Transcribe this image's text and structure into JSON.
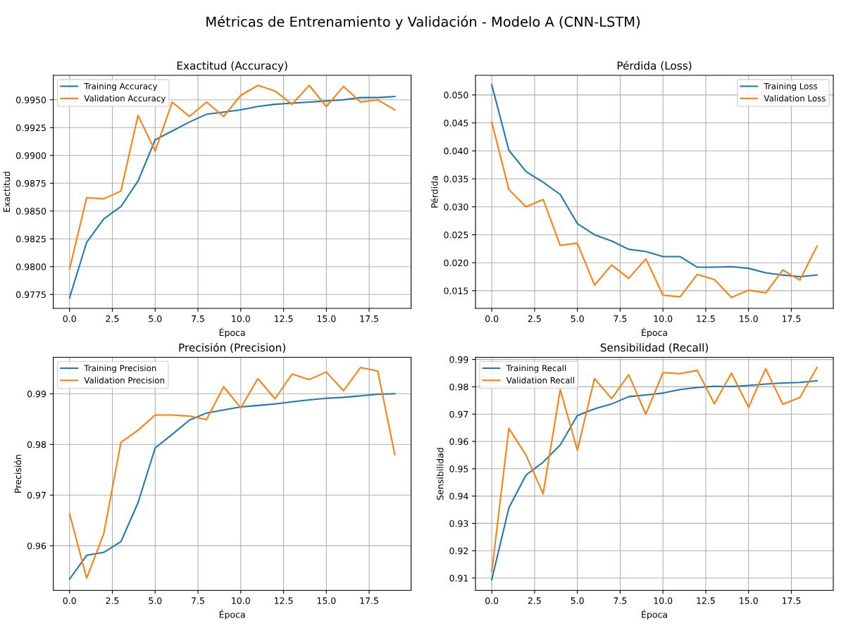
{
  "chart_data": [
    {
      "type": "line",
      "title": "Exactitud (Accuracy)",
      "xlabel": "Época",
      "ylabel": "Exactitud",
      "annotations": [
        "Métricas de Entrenamiento y Validación - Modelo A (CNN-LSTM)"
      ],
      "x": [
        0,
        1,
        2,
        3,
        4,
        5,
        6,
        7,
        8,
        9,
        10,
        11,
        12,
        13,
        14,
        15,
        16,
        17,
        18,
        19
      ],
      "series": [
        {
          "name": "Training Accuracy",
          "color": "#1f77b4",
          "values": [
            0.9772,
            0.9822,
            0.9843,
            0.9854,
            0.9877,
            0.9914,
            0.9922,
            0.993,
            0.9937,
            0.9939,
            0.9941,
            0.9944,
            0.9946,
            0.9947,
            0.9948,
            0.9949,
            0.995,
            0.9952,
            0.9952,
            0.9953
          ]
        },
        {
          "name": "Validation Accuracy",
          "color": "#ff7f0e",
          "values": [
            0.9798,
            0.9862,
            0.9861,
            0.9868,
            0.9936,
            0.9904,
            0.9948,
            0.9935,
            0.9948,
            0.9935,
            0.9954,
            0.9963,
            0.9958,
            0.9946,
            0.9963,
            0.9944,
            0.9962,
            0.9948,
            0.995,
            0.9941
          ]
        }
      ],
      "xlim": [
        -0.95,
        19.95
      ],
      "xticks": [
        {
          "value": 0,
          "label": "0.0"
        },
        {
          "value": 2.5,
          "label": "2.5"
        },
        {
          "value": 5,
          "label": "5.0"
        },
        {
          "value": 7.5,
          "label": "7.5"
        },
        {
          "value": 10,
          "label": "10.0"
        },
        {
          "value": 12.5,
          "label": "12.5"
        },
        {
          "value": 15,
          "label": "15.0"
        },
        {
          "value": 17.5,
          "label": "17.5"
        }
      ],
      "ylim": [
        0.97625,
        0.9972
      ],
      "yticks": [
        {
          "value": 0.9775,
          "label": "0.9775"
        },
        {
          "value": 0.98,
          "label": "0.9800"
        },
        {
          "value": 0.9825,
          "label": "0.9825"
        },
        {
          "value": 0.985,
          "label": "0.9850"
        },
        {
          "value": 0.9875,
          "label": "0.9875"
        },
        {
          "value": 0.99,
          "label": "0.9900"
        },
        {
          "value": 0.9925,
          "label": "0.9925"
        },
        {
          "value": 0.995,
          "label": "0.9950"
        }
      ],
      "grid": true,
      "legend": "top left",
      "line_style": "solid",
      "marker": "none"
    },
    {
      "type": "line",
      "title": "Pérdida (Loss)",
      "xlabel": "Época",
      "ylabel": "Pérdida",
      "x": [
        0,
        1,
        2,
        3,
        4,
        5,
        6,
        7,
        8,
        9,
        10,
        11,
        12,
        13,
        14,
        15,
        16,
        17,
        18,
        19
      ],
      "series": [
        {
          "name": "Training Loss",
          "color": "#1f77b4",
          "values": [
            0.0518,
            0.0401,
            0.0363,
            0.0344,
            0.0322,
            0.027,
            0.025,
            0.0239,
            0.0224,
            0.022,
            0.0211,
            0.0211,
            0.0192,
            0.0192,
            0.0193,
            0.019,
            0.0182,
            0.0178,
            0.0175,
            0.0178
          ]
        },
        {
          "name": "Validation Loss",
          "color": "#ff7f0e",
          "values": [
            0.0451,
            0.0331,
            0.03,
            0.0313,
            0.0231,
            0.0235,
            0.016,
            0.0196,
            0.0172,
            0.0207,
            0.0142,
            0.0139,
            0.0179,
            0.017,
            0.0138,
            0.0151,
            0.0146,
            0.0187,
            0.0169,
            0.023
          ]
        }
      ],
      "xlim": [
        -0.95,
        19.95
      ],
      "xticks": [
        {
          "value": 0,
          "label": "0.0"
        },
        {
          "value": 2.5,
          "label": "2.5"
        },
        {
          "value": 5,
          "label": "5.0"
        },
        {
          "value": 7.5,
          "label": "7.5"
        },
        {
          "value": 10,
          "label": "10.0"
        },
        {
          "value": 12.5,
          "label": "12.5"
        },
        {
          "value": 15,
          "label": "15.0"
        },
        {
          "value": 17.5,
          "label": "17.5"
        }
      ],
      "ylim": [
        0.01184,
        0.0535
      ],
      "yticks": [
        {
          "value": 0.015,
          "label": "0.015"
        },
        {
          "value": 0.02,
          "label": "0.020"
        },
        {
          "value": 0.025,
          "label": "0.025"
        },
        {
          "value": 0.03,
          "label": "0.030"
        },
        {
          "value": 0.035,
          "label": "0.035"
        },
        {
          "value": 0.04,
          "label": "0.040"
        },
        {
          "value": 0.045,
          "label": "0.045"
        },
        {
          "value": 0.05,
          "label": "0.050"
        }
      ],
      "grid": true,
      "legend": "top right",
      "line_style": "solid",
      "marker": "none"
    },
    {
      "type": "line",
      "title": "Precisión (Precision)",
      "xlabel": "Época",
      "ylabel": "Precisión",
      "x": [
        0,
        1,
        2,
        3,
        4,
        5,
        6,
        7,
        8,
        9,
        10,
        11,
        12,
        13,
        14,
        15,
        16,
        17,
        18,
        19
      ],
      "series": [
        {
          "name": "Training Precision",
          "color": "#1f77b4",
          "values": [
            0.9534,
            0.9581,
            0.9587,
            0.9608,
            0.9685,
            0.9793,
            0.982,
            0.9848,
            0.9862,
            0.9868,
            0.9874,
            0.9877,
            0.988,
            0.9884,
            0.9888,
            0.9891,
            0.9893,
            0.9896,
            0.9899,
            0.99
          ]
        },
        {
          "name": "Validation Precision",
          "color": "#ff7f0e",
          "values": [
            0.9663,
            0.9536,
            0.9624,
            0.9804,
            0.9828,
            0.9858,
            0.9858,
            0.9856,
            0.9849,
            0.9914,
            0.9872,
            0.993,
            0.989,
            0.9939,
            0.9928,
            0.9943,
            0.9906,
            0.9952,
            0.9945,
            0.978
          ]
        }
      ],
      "xlim": [
        -0.95,
        19.95
      ],
      "xticks": [
        {
          "value": 0,
          "label": "0.0"
        },
        {
          "value": 2.5,
          "label": "2.5"
        },
        {
          "value": 5,
          "label": "5.0"
        },
        {
          "value": 7.5,
          "label": "7.5"
        },
        {
          "value": 10,
          "label": "10.0"
        },
        {
          "value": 12.5,
          "label": "12.5"
        },
        {
          "value": 15,
          "label": "15.0"
        },
        {
          "value": 17.5,
          "label": "17.5"
        }
      ],
      "ylim": [
        0.9512,
        0.9972
      ],
      "yticks": [
        0.96,
        0.97,
        0.98,
        0.99
      ],
      "grid": true,
      "legend": "top left",
      "line_style": "solid",
      "marker": "none"
    },
    {
      "type": "line",
      "title": "Sensibilidad (Recall)",
      "xlabel": "Época",
      "ylabel": "Sensibilidad",
      "x": [
        0,
        1,
        2,
        3,
        4,
        5,
        6,
        7,
        8,
        9,
        10,
        11,
        12,
        13,
        14,
        15,
        16,
        17,
        18,
        19
      ],
      "series": [
        {
          "name": "Training Recall",
          "color": "#1f77b4",
          "values": [
            0.9094,
            0.9357,
            0.9477,
            0.9524,
            0.9587,
            0.9695,
            0.9719,
            0.9737,
            0.9764,
            0.977,
            0.9777,
            0.979,
            0.9797,
            0.9802,
            0.9801,
            0.9805,
            0.981,
            0.9814,
            0.9816,
            0.9822
          ]
        },
        {
          "name": "Validation Recall",
          "color": "#ff7f0e",
          "values": [
            0.9123,
            0.9648,
            0.955,
            0.9408,
            0.979,
            0.9567,
            0.983,
            0.9757,
            0.9844,
            0.97,
            0.9852,
            0.9848,
            0.986,
            0.9738,
            0.985,
            0.9725,
            0.9866,
            0.9736,
            0.9761,
            0.9871
          ]
        }
      ],
      "xlim": [
        -0.95,
        19.95
      ],
      "xticks": [
        {
          "value": 0,
          "label": "0.0"
        },
        {
          "value": 2.5,
          "label": "2.5"
        },
        {
          "value": 5,
          "label": "5.0"
        },
        {
          "value": 7.5,
          "label": "7.5"
        },
        {
          "value": 10,
          "label": "10.0"
        },
        {
          "value": 12.5,
          "label": "12.5"
        },
        {
          "value": 15,
          "label": "15.0"
        },
        {
          "value": 17.5,
          "label": "17.5"
        }
      ],
      "ylim": [
        0.9055,
        0.9908
      ],
      "yticks": [
        0.91,
        0.92,
        0.93,
        0.94,
        0.95,
        0.96,
        0.97,
        0.98,
        0.99
      ],
      "grid": true,
      "legend": "top left",
      "line_style": "solid",
      "marker": "none"
    }
  ]
}
